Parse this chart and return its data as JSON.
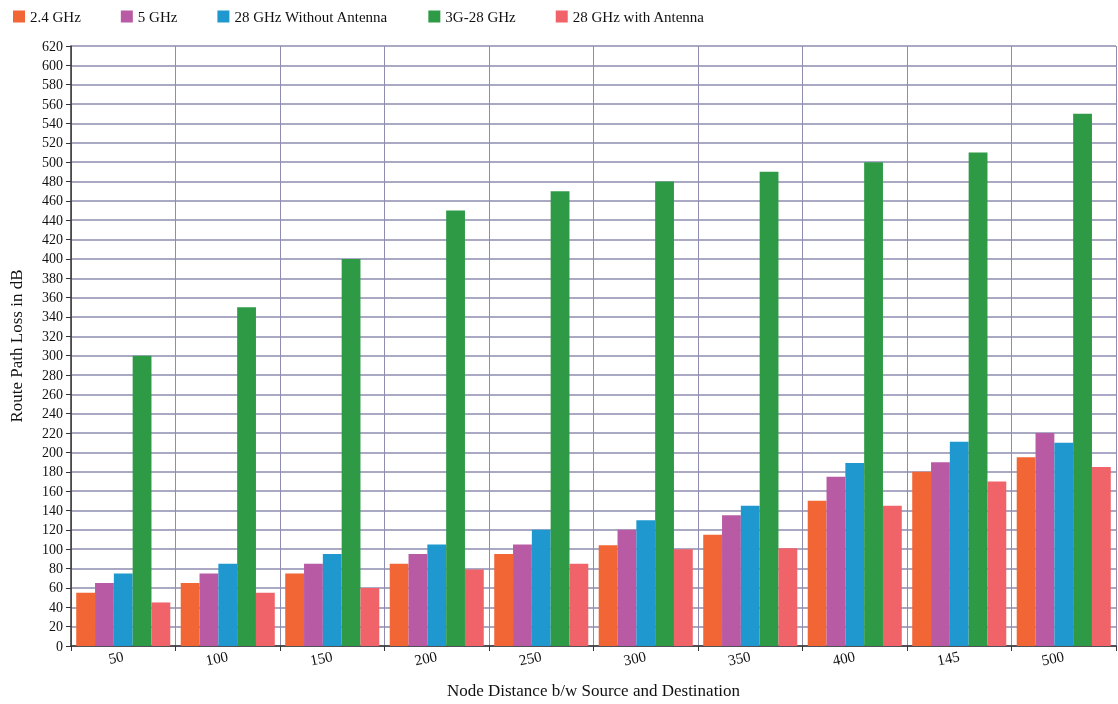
{
  "chart_data": {
    "type": "bar",
    "xlabel": "Node Distance b/w Source and Destination",
    "ylabel": "Route Path Loss in dB",
    "categories": [
      "50",
      "100",
      "150",
      "200",
      "250",
      "300",
      "350",
      "400",
      "145",
      "500"
    ],
    "series": [
      {
        "name": "2.4 GHz",
        "color": "#f26535",
        "values": [
          55,
          65,
          75,
          85,
          95,
          104,
          115,
          150,
          180,
          195
        ]
      },
      {
        "name": "5 GHz",
        "color": "#b95aa4",
        "values": [
          65,
          75,
          85,
          95,
          105,
          120,
          135,
          175,
          190,
          220
        ]
      },
      {
        "name": "28 GHz Without Antenna",
        "color": "#1f98d0",
        "values": [
          75,
          85,
          95,
          105,
          120,
          130,
          145,
          189,
          211,
          210
        ]
      },
      {
        "name": "3G-28 GHz",
        "color": "#2f9a46",
        "values": [
          300,
          350,
          400,
          450,
          470,
          480,
          490,
          500,
          510,
          550
        ]
      },
      {
        "name": "28 GHz with Antenna",
        "color": "#ef6369",
        "values": [
          45,
          55,
          60,
          79,
          85,
          100,
          101,
          145,
          170,
          185
        ]
      }
    ],
    "ylim": [
      0,
      620
    ],
    "yticks": [
      0,
      20,
      40,
      60,
      80,
      100,
      120,
      140,
      160,
      180,
      200,
      220,
      240,
      260,
      280,
      300,
      320,
      340,
      360,
      380,
      400,
      420,
      440,
      460,
      480,
      500,
      520,
      540,
      560,
      580,
      600,
      620
    ],
    "grid": true,
    "legend": "top left"
  }
}
